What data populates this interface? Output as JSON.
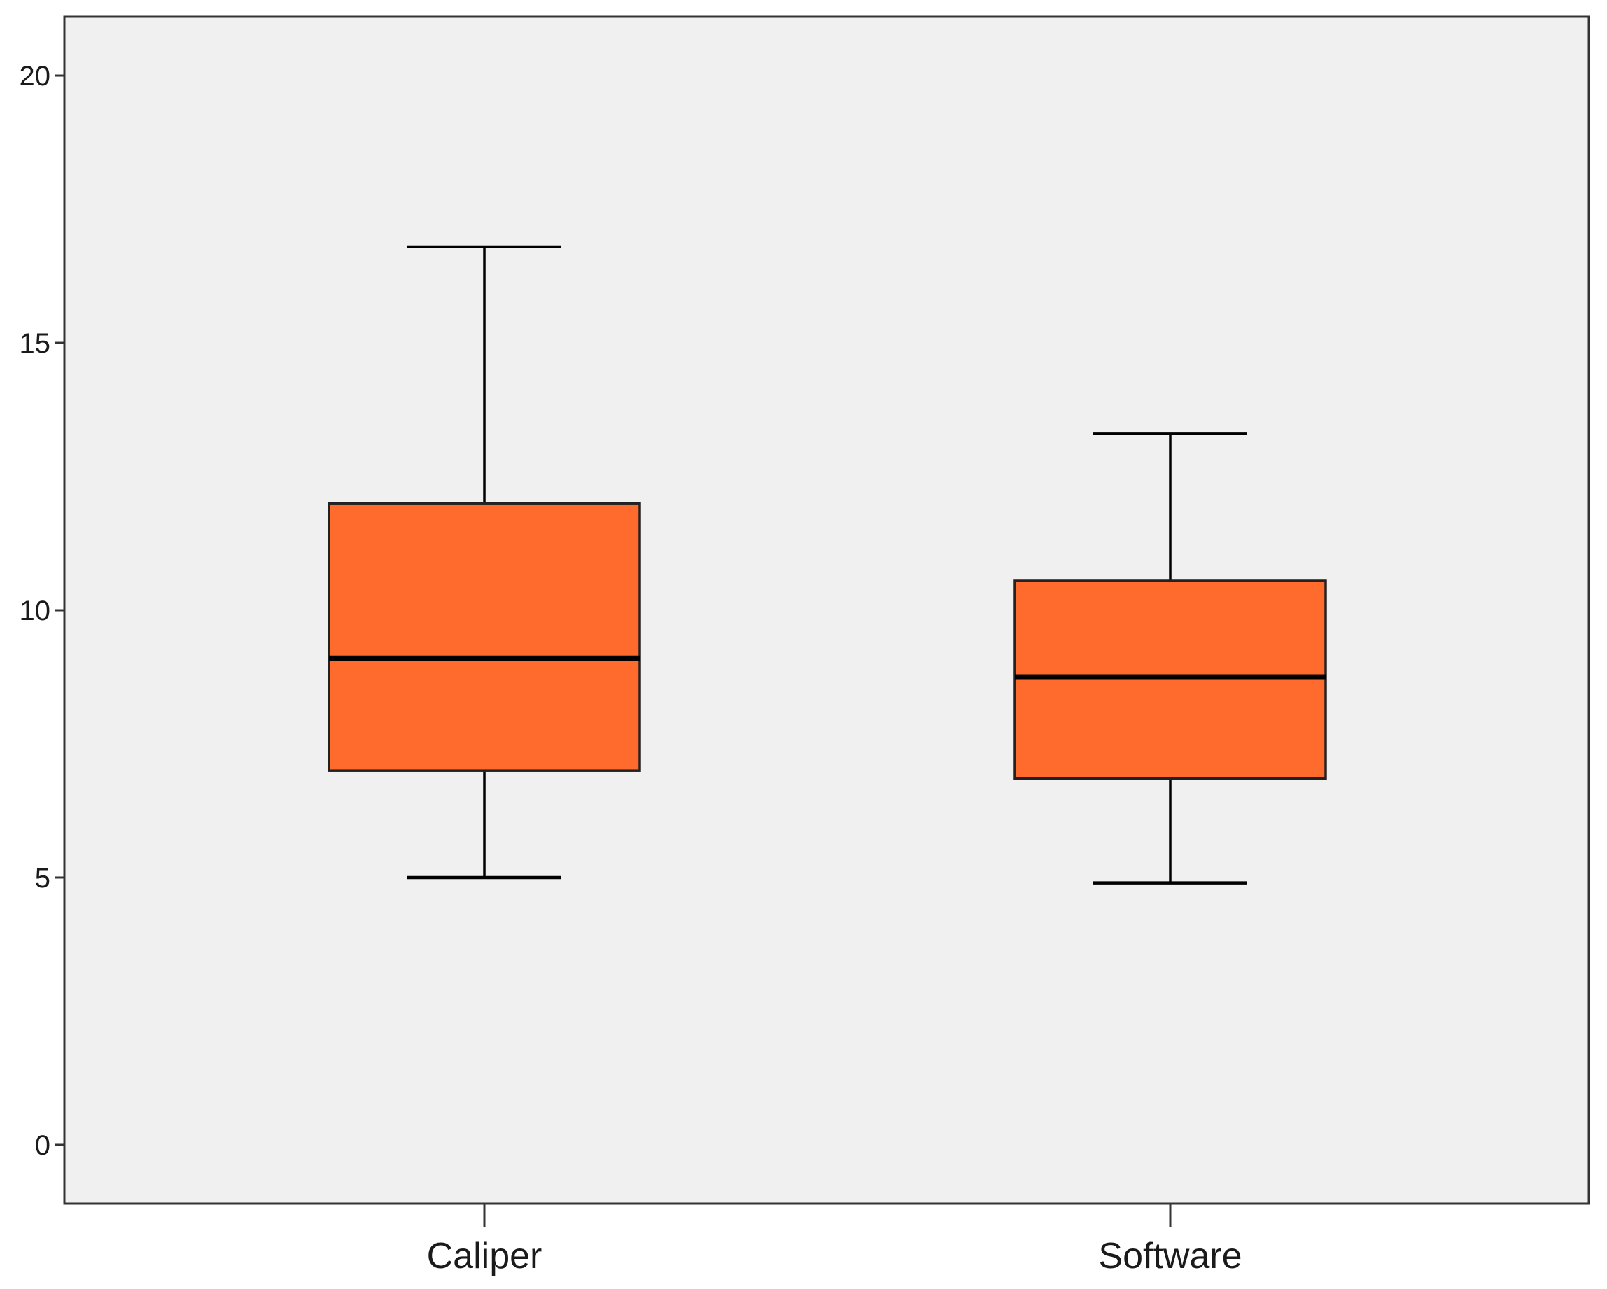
{
  "chart_data": {
    "type": "box",
    "title": "",
    "xlabel": "",
    "ylabel": "",
    "ylim": [
      -1.1,
      21.1
    ],
    "yticks": [
      0,
      5,
      10,
      15,
      20
    ],
    "ytick_labels": [
      "0",
      "5",
      "10",
      "15",
      "20"
    ],
    "categories": [
      "Caliper",
      "Software"
    ],
    "boxes": [
      {
        "category": "Caliper",
        "whisker_low": 5.0,
        "q1": 7.0,
        "median": 9.1,
        "q3": 12.0,
        "whisker_high": 16.8
      },
      {
        "category": "Software",
        "whisker_low": 4.9,
        "q1": 6.85,
        "median": 8.75,
        "q3": 10.55,
        "whisker_high": 13.3
      }
    ],
    "grid": false,
    "colors": {
      "box_fill": "#ff6a2d",
      "plot_background": "#f0f0f0",
      "line": "#000000"
    }
  }
}
